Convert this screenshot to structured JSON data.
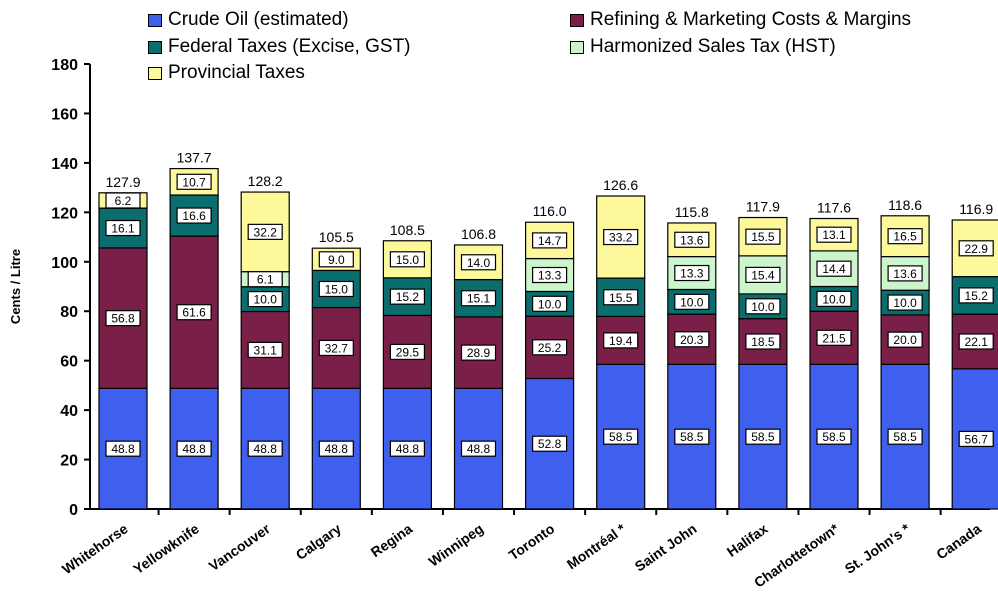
{
  "chart_data": {
    "type": "bar",
    "stacked": true,
    "ylabel": "Cents / Litre",
    "ylim": [
      0,
      180
    ],
    "yticks": [
      0,
      20,
      40,
      60,
      80,
      100,
      120,
      140,
      160,
      180
    ],
    "categories": [
      "Whitehorse",
      "Yellowknife",
      "Vancouver",
      "Calgary",
      "Regina",
      "Winnipeg",
      "Toronto",
      "Montréal *",
      "Saint John",
      "Halifax",
      "Charlottetown*",
      "St. John's *",
      "Canada"
    ],
    "totals": [
      "127.9",
      "137.7",
      "128.2",
      "105.5",
      "108.5",
      "106.8",
      "116.0",
      "126.6",
      "115.8",
      "117.9",
      "117.6",
      "118.6",
      "116.9"
    ],
    "legend_position": "top",
    "series": [
      {
        "name": "Crude Oil (estimated)",
        "color": "#3f5fee",
        "values": [
          48.8,
          48.8,
          48.8,
          48.8,
          48.8,
          48.8,
          52.8,
          58.5,
          58.5,
          58.5,
          58.5,
          58.5,
          56.7
        ],
        "labels": [
          "48.8",
          "48.8",
          "48.8",
          "48.8",
          "48.8",
          "48.8",
          "52.8",
          "58.5",
          "58.5",
          "58.5",
          "58.5",
          "58.5",
          "56.7"
        ]
      },
      {
        "name": "Refining & Marketing Costs & Margins",
        "color": "#7a1f47",
        "values": [
          56.8,
          61.6,
          31.1,
          32.7,
          29.5,
          28.9,
          25.2,
          19.4,
          20.3,
          18.5,
          21.5,
          20.0,
          22.1
        ],
        "labels": [
          "56.8",
          "61.6",
          "31.1",
          "32.7",
          "29.5",
          "28.9",
          "25.2",
          "19.4",
          "20.3",
          "18.5",
          "21.5",
          "20.0",
          "22.1"
        ]
      },
      {
        "name": "Federal Taxes (Excise, GST)",
        "color": "#0b6e6e",
        "values": [
          16.1,
          16.6,
          10.0,
          15.0,
          15.2,
          15.1,
          10.0,
          15.5,
          10.0,
          10.0,
          10.0,
          10.0,
          15.2
        ],
        "labels": [
          "16.1",
          "16.6",
          "10.0",
          "15.0",
          "15.2",
          "15.1",
          "10.0",
          "15.5",
          "10.0",
          "10.0",
          "10.0",
          "10.0",
          "15.2"
        ]
      },
      {
        "name": "Harmonized Sales Tax (HST)",
        "color": "#ccf5cc",
        "values": [
          0,
          0,
          6.1,
          0,
          0,
          0,
          13.3,
          0,
          13.3,
          15.4,
          14.4,
          13.6,
          0
        ],
        "labels": [
          "",
          "",
          "6.1",
          "",
          "",
          "",
          "13.3",
          "",
          "13.3",
          "15.4",
          "14.4",
          "13.6",
          ""
        ]
      },
      {
        "name": "Provincial Taxes",
        "color": "#fdf99a",
        "values": [
          6.2,
          10.7,
          32.2,
          9.0,
          15.0,
          14.0,
          14.7,
          33.2,
          13.6,
          15.5,
          13.1,
          16.5,
          22.9
        ],
        "labels": [
          "6.2",
          "10.7",
          "32.2",
          "9.0",
          "15.0",
          "14.0",
          "14.7",
          "33.2",
          "13.6",
          "15.5",
          "13.1",
          "16.5",
          "22.9"
        ]
      }
    ]
  }
}
